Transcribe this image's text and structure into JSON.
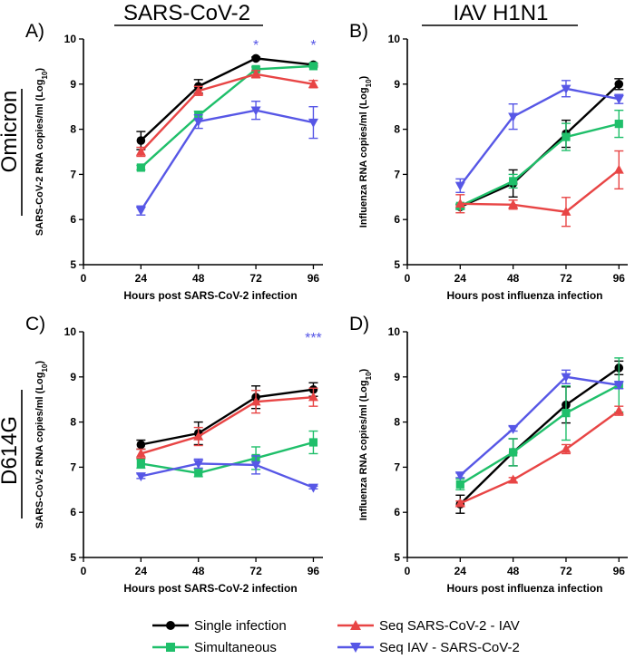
{
  "figure": {
    "column_titles": [
      "SARS-CoV-2",
      "IAV H1N1"
    ],
    "row_titles": [
      "Omicron",
      "D614G"
    ]
  },
  "series_styles": [
    {
      "name": "Single infection",
      "color": "#000000",
      "marker": "circle"
    },
    {
      "name": "Simultaneous",
      "color": "#1fbf6a",
      "marker": "square"
    },
    {
      "name": "Seq SARS-CoV-2 - IAV",
      "color": "#e84545",
      "marker": "triangle-up"
    },
    {
      "name": "Seq IAV - SARS-CoV-2",
      "color": "#5757e6",
      "marker": "triangle-down"
    }
  ],
  "legend": {
    "items": [
      "Single infection",
      "Simultaneous",
      "Seq SARS-CoV-2 - IAV",
      "Seq IAV - SARS-CoV-2"
    ]
  },
  "chart_data": [
    {
      "type": "line",
      "panel_label": "A)",
      "xlabel": "Hours post SARS-CoV-2 infection",
      "ylabel": "SARS-CoV-2 RNA copies/ml (Log",
      "ylabel_sub": "10",
      "ylabel_suffix": ")",
      "xlim": [
        0,
        100
      ],
      "ylim": [
        5,
        10
      ],
      "xticks": [
        0,
        24,
        48,
        72,
        96
      ],
      "yticks": [
        5,
        6,
        7,
        8,
        9,
        10
      ],
      "x": [
        24,
        48,
        72,
        96
      ],
      "series": [
        {
          "name": "Single infection",
          "values": [
            7.75,
            8.95,
            9.57,
            9.43
          ],
          "errors": [
            0.2,
            0.15,
            0.03,
            0.03
          ]
        },
        {
          "name": "Simultaneous",
          "values": [
            7.15,
            8.3,
            9.33,
            9.4
          ],
          "errors": [
            0.05,
            0.1,
            0.05,
            0.03
          ]
        },
        {
          "name": "Seq SARS-CoV-2 - IAV",
          "values": [
            7.5,
            8.85,
            9.22,
            9.0
          ],
          "errors": [
            0.1,
            0.1,
            0.08,
            0.08
          ]
        },
        {
          "name": "Seq IAV - SARS-CoV-2",
          "values": [
            6.2,
            8.17,
            8.42,
            8.15
          ],
          "errors": [
            0.1,
            0.15,
            0.2,
            0.35
          ]
        }
      ],
      "annotations": [
        {
          "x": 72,
          "text": "*",
          "color": "#5757e6"
        },
        {
          "x": 96,
          "text": "*",
          "color": "#5757e6"
        }
      ]
    },
    {
      "type": "line",
      "panel_label": "B)",
      "xlabel": "Hours post influenza infection",
      "ylabel": "Influenza RNA copies/ml (Log",
      "ylabel_sub": "10",
      "ylabel_suffix": ")",
      "xlim": [
        0,
        100
      ],
      "ylim": [
        5,
        10
      ],
      "xticks": [
        0,
        24,
        48,
        72,
        96
      ],
      "yticks": [
        5,
        6,
        7,
        8,
        9,
        10
      ],
      "x": [
        24,
        48,
        72,
        96
      ],
      "series": [
        {
          "name": "Single infection",
          "values": [
            6.28,
            6.8,
            7.9,
            9.0
          ],
          "errors": [
            0.05,
            0.3,
            0.3,
            0.12
          ]
        },
        {
          "name": "Simultaneous",
          "values": [
            6.3,
            6.85,
            7.83,
            8.12
          ],
          "errors": [
            0.05,
            0.15,
            0.3,
            0.3
          ]
        },
        {
          "name": "Seq SARS-CoV-2 - IAV",
          "values": [
            6.35,
            6.33,
            6.17,
            7.1
          ],
          "errors": [
            0.2,
            0.1,
            0.32,
            0.42
          ]
        },
        {
          "name": "Seq IAV - SARS-CoV-2",
          "values": [
            6.75,
            8.28,
            8.9,
            8.67
          ],
          "errors": [
            0.15,
            0.28,
            0.18,
            0.1
          ]
        }
      ],
      "annotations": []
    },
    {
      "type": "line",
      "panel_label": "C)",
      "xlabel": "Hours post SARS-CoV-2 infection",
      "ylabel": "SARS-CoV-2 RNA copies/ml (Log",
      "ylabel_sub": "10",
      "ylabel_suffix": ")",
      "xlim": [
        0,
        100
      ],
      "ylim": [
        5,
        10
      ],
      "xticks": [
        0,
        24,
        48,
        72,
        96
      ],
      "yticks": [
        5,
        6,
        7,
        8,
        9,
        10
      ],
      "x": [
        24,
        48,
        72,
        96
      ],
      "series": [
        {
          "name": "Single infection",
          "values": [
            7.5,
            7.75,
            8.55,
            8.72
          ],
          "errors": [
            0.1,
            0.25,
            0.25,
            0.15
          ]
        },
        {
          "name": "Simultaneous",
          "values": [
            7.08,
            6.87,
            7.2,
            7.55
          ],
          "errors": [
            0.1,
            0.08,
            0.25,
            0.25
          ]
        },
        {
          "name": "Seq SARS-CoV-2 - IAV",
          "values": [
            7.3,
            7.68,
            8.45,
            8.55
          ],
          "errors": [
            0.1,
            0.2,
            0.25,
            0.2
          ]
        },
        {
          "name": "Seq IAV - SARS-CoV-2",
          "values": [
            6.8,
            7.08,
            7.05,
            6.55
          ],
          "errors": [
            0.05,
            0.1,
            0.2,
            0.03
          ]
        }
      ],
      "annotations": [
        {
          "x": 96,
          "text": "***",
          "color": "#5757e6"
        }
      ]
    },
    {
      "type": "line",
      "panel_label": "D)",
      "xlabel": "Hours post influenza infection",
      "ylabel": "Influenza RNA copies/ml (Log",
      "ylabel_sub": "10",
      "ylabel_suffix": ")",
      "xlim": [
        0,
        100
      ],
      "ylim": [
        5,
        10
      ],
      "xticks": [
        0,
        24,
        48,
        72,
        96
      ],
      "yticks": [
        5,
        6,
        7,
        8,
        9,
        10
      ],
      "x": [
        24,
        48,
        72,
        96
      ],
      "series": [
        {
          "name": "Single infection",
          "values": [
            6.18,
            7.33,
            8.38,
            9.2
          ],
          "errors": [
            0.2,
            0.3,
            0.4,
            0.15
          ]
        },
        {
          "name": "Simultaneous",
          "values": [
            6.62,
            7.33,
            8.2,
            8.82
          ],
          "errors": [
            0.12,
            0.3,
            0.6,
            0.6
          ]
        },
        {
          "name": "Seq SARS-CoV-2 - IAV",
          "values": [
            6.2,
            6.72,
            7.4,
            8.25
          ],
          "errors": [
            0.05,
            0.05,
            0.1,
            0.1
          ]
        },
        {
          "name": "Seq IAV - SARS-CoV-2",
          "values": [
            6.82,
            7.85,
            9.0,
            8.82
          ],
          "errors": [
            0.05,
            0.05,
            0.15,
            0.08
          ]
        }
      ],
      "annotations": []
    }
  ]
}
